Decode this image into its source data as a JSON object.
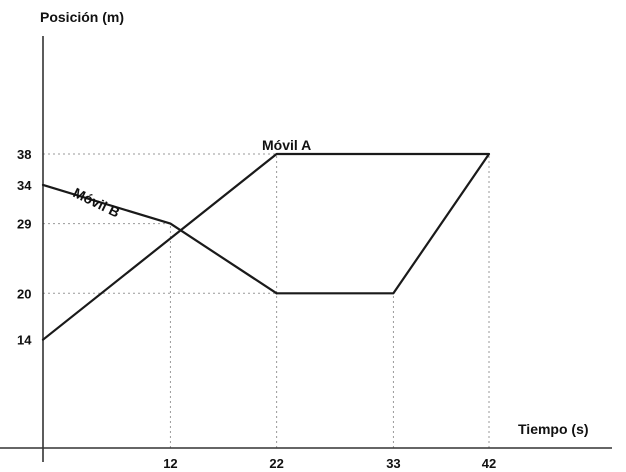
{
  "chart_data": {
    "type": "line",
    "xlabel": "Tiempo (s)",
    "ylabel": "Posición (m)",
    "x_ticks": [
      12,
      22,
      33,
      42
    ],
    "y_ticks": [
      14,
      20,
      29,
      34,
      38
    ],
    "xlim": [
      0,
      42
    ],
    "ylim": [
      0,
      38
    ],
    "grid": "dotted guide lines at labelled ticks",
    "series": [
      {
        "name": "Móvil A",
        "points": [
          [
            0,
            14
          ],
          [
            22,
            38
          ],
          [
            42,
            38
          ],
          [
            33,
            20
          ],
          [
            22,
            20
          ]
        ]
      },
      {
        "name": "Móvil B",
        "points": [
          [
            0,
            34
          ],
          [
            12,
            29
          ],
          [
            22,
            20
          ]
        ]
      }
    ],
    "colors": {
      "line": "#1a1a1a",
      "axis": "#333333",
      "guide": "#999999",
      "text": "#111111"
    }
  }
}
